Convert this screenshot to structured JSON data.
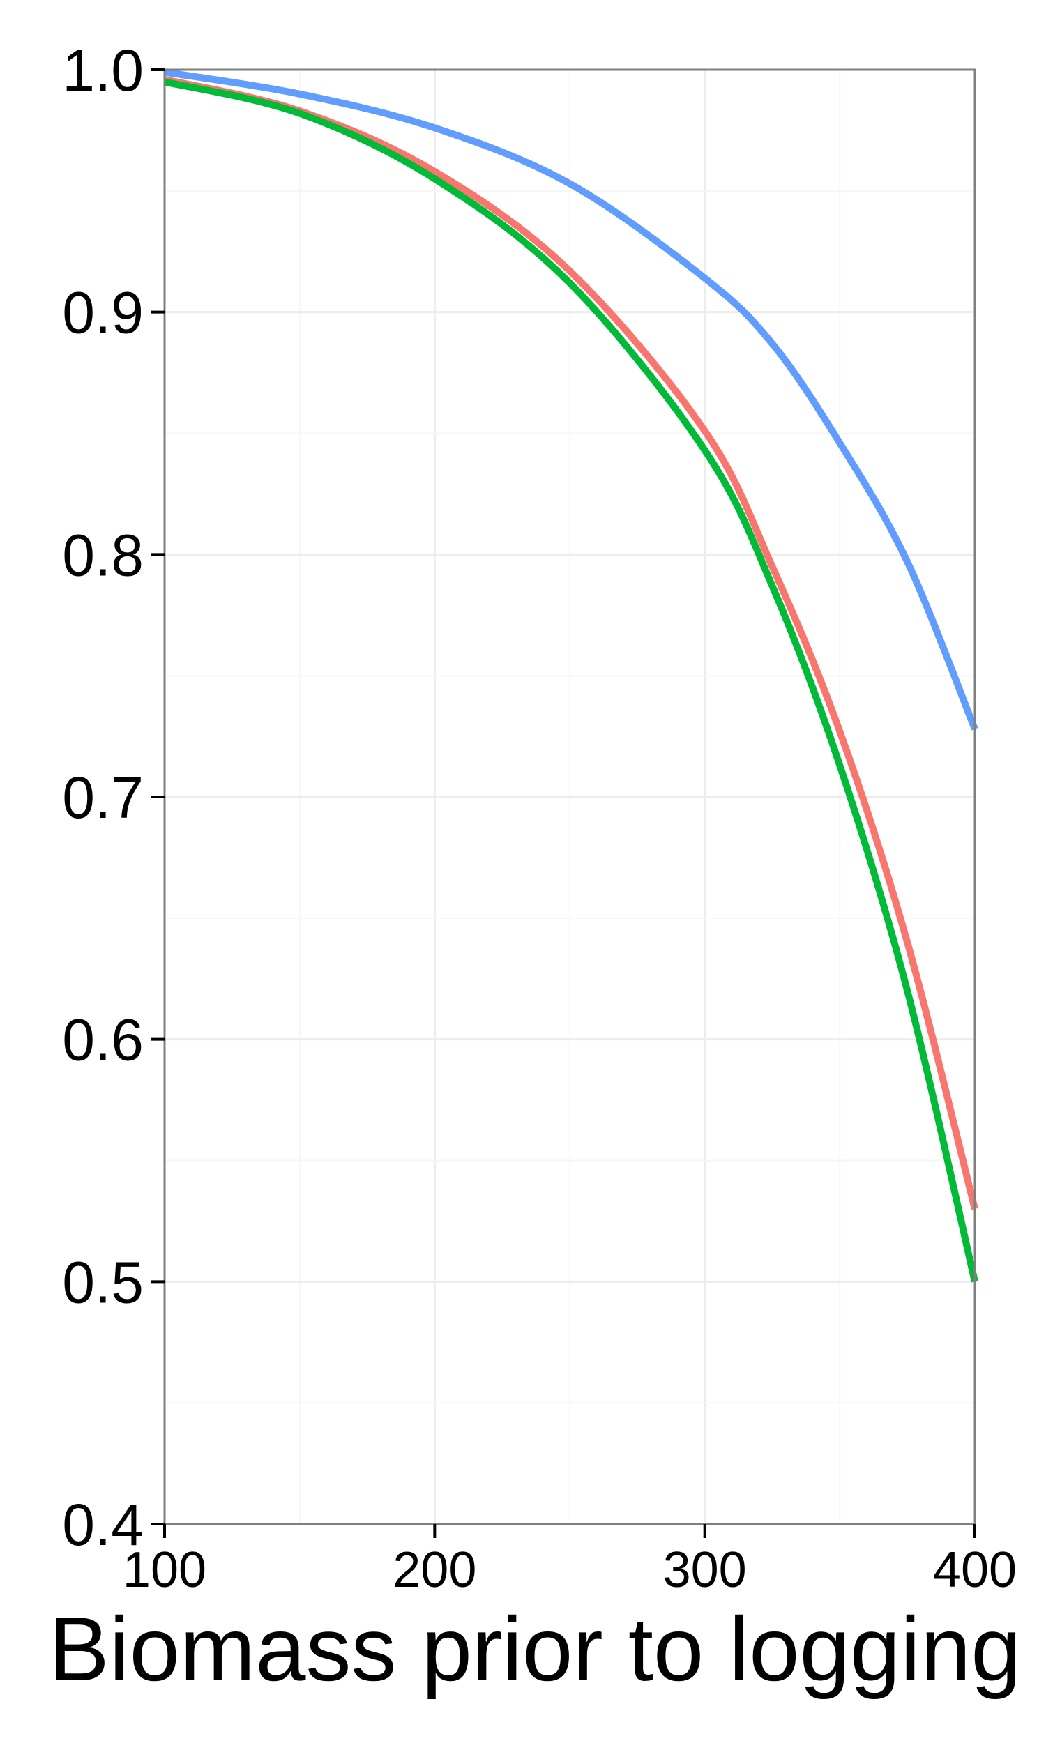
{
  "chart_data": {
    "type": "line",
    "title": "",
    "xlabel": "Biomass prior to logging",
    "ylabel": "",
    "xlim": [
      100,
      400
    ],
    "ylim": [
      0.4,
      1.0
    ],
    "x_ticks": [
      "100",
      "200",
      "300",
      "400"
    ],
    "y_ticks": [
      "0.4",
      "0.5",
      "0.6",
      "0.7",
      "0.8",
      "0.9",
      "1.0"
    ],
    "grid": true,
    "legend": "none",
    "series": [
      {
        "color": "#F8766D",
        "x": [
          100,
          150,
          200,
          250,
          300,
          325,
          350,
          375,
          400
        ],
        "y": [
          0.996,
          0.983,
          0.958,
          0.917,
          0.851,
          0.795,
          0.727,
          0.64,
          0.53
        ]
      },
      {
        "color": "#00BA38",
        "x": [
          100,
          150,
          200,
          250,
          300,
          325,
          350,
          375,
          400
        ],
        "y": [
          0.995,
          0.982,
          0.955,
          0.912,
          0.843,
          0.787,
          0.713,
          0.62,
          0.5
        ]
      },
      {
        "color": "#619CFF",
        "x": [
          100,
          150,
          200,
          250,
          300,
          325,
          350,
          375,
          400
        ],
        "y": [
          0.999,
          0.99,
          0.976,
          0.953,
          0.914,
          0.887,
          0.846,
          0.797,
          0.728
        ]
      }
    ]
  }
}
